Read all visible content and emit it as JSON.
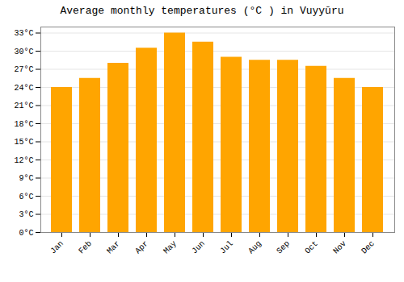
{
  "chart_data": {
    "type": "bar",
    "title": "Average monthly temperatures (°C ) in Vuyyūru",
    "categories": [
      "Jan",
      "Feb",
      "Mar",
      "Apr",
      "May",
      "Jun",
      "Jul",
      "Aug",
      "Sep",
      "Oct",
      "Nov",
      "Dec"
    ],
    "values": [
      24,
      25.5,
      28,
      30.5,
      33,
      31.5,
      29,
      28.5,
      28.5,
      27.5,
      25.5,
      24
    ],
    "color": "#FFA500",
    "ylim": [
      0,
      34
    ],
    "yticks": [
      {
        "value": 0,
        "label": "0°C"
      },
      {
        "value": 3,
        "label": "3°C"
      },
      {
        "value": 6,
        "label": "6°C"
      },
      {
        "value": 9,
        "label": "9°C"
      },
      {
        "value": 12,
        "label": "12°C"
      },
      {
        "value": 15,
        "label": "15°C"
      },
      {
        "value": 18,
        "label": "18°C"
      },
      {
        "value": 21,
        "label": "21°C"
      },
      {
        "value": 24,
        "label": "24°C"
      },
      {
        "value": 27,
        "label": "27°C"
      },
      {
        "value": 30,
        "label": "30°C"
      },
      {
        "value": 33,
        "label": "33°C"
      }
    ],
    "grid": true
  }
}
